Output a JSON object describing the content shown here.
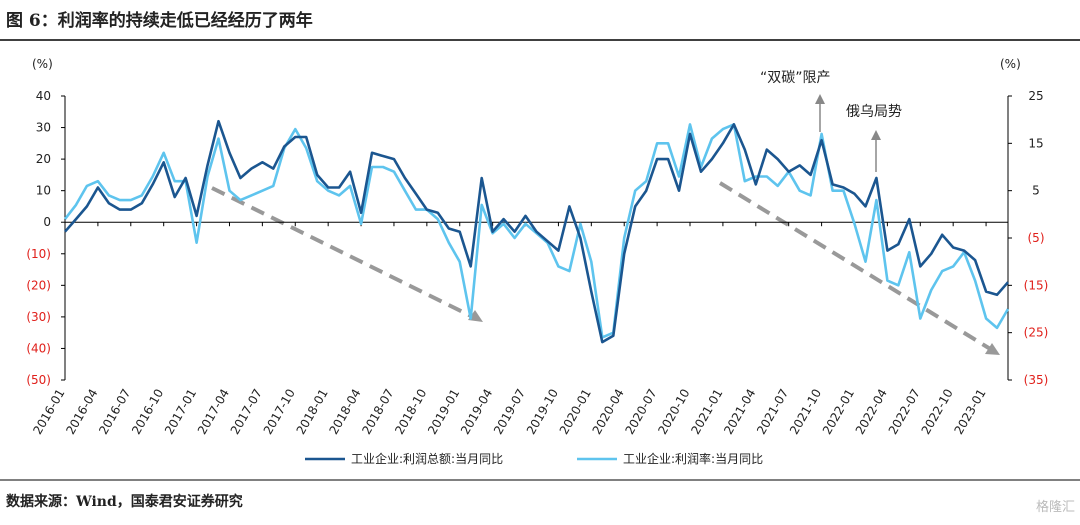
{
  "chart_data": {
    "type": "line",
    "title": "图 6：利润率的持续走低已经经历了两年",
    "source": "数据来源：Wind，国泰君安证券研究",
    "watermark": "格隆汇",
    "y_unit": "(%)",
    "y2_unit": "(%)",
    "annotations": [
      "“双碳”限产",
      "俄乌局势"
    ],
    "x": [
      "2016-01",
      "2016-02",
      "2016-03",
      "2016-04",
      "2016-05",
      "2016-06",
      "2016-07",
      "2016-08",
      "2016-09",
      "2016-10",
      "2016-11",
      "2016-12",
      "2017-01",
      "2017-02",
      "2017-03",
      "2017-04",
      "2017-05",
      "2017-06",
      "2017-07",
      "2017-08",
      "2017-09",
      "2017-10",
      "2017-11",
      "2017-12",
      "2018-01",
      "2018-02",
      "2018-03",
      "2018-04",
      "2018-05",
      "2018-06",
      "2018-07",
      "2018-08",
      "2018-09",
      "2018-10",
      "2018-11",
      "2018-12",
      "2019-01",
      "2019-02",
      "2019-03",
      "2019-04",
      "2019-05",
      "2019-06",
      "2019-07",
      "2019-08",
      "2019-09",
      "2019-10",
      "2019-11",
      "2019-12",
      "2020-01",
      "2020-02",
      "2020-03",
      "2020-04",
      "2020-05",
      "2020-06",
      "2020-07",
      "2020-08",
      "2020-09",
      "2020-10",
      "2020-11",
      "2020-12",
      "2021-01",
      "2021-02",
      "2021-03",
      "2021-04",
      "2021-05",
      "2021-06",
      "2021-07",
      "2021-08",
      "2021-09",
      "2021-10",
      "2021-11",
      "2021-12",
      "2022-01",
      "2022-02",
      "2022-03",
      "2022-04",
      "2022-05",
      "2022-06",
      "2022-07",
      "2022-08",
      "2022-09",
      "2022-10",
      "2022-11",
      "2022-12",
      "2023-01",
      "2023-02",
      "2023-03"
    ],
    "xticks": [
      "2016-01",
      "2016-04",
      "2016-07",
      "2016-10",
      "2017-01",
      "2017-04",
      "2017-07",
      "2017-10",
      "2018-01",
      "2018-04",
      "2018-07",
      "2018-10",
      "2019-01",
      "2019-04",
      "2019-07",
      "2019-10",
      "2020-01",
      "2020-04",
      "2020-07",
      "2020-10",
      "2021-01",
      "2021-04",
      "2021-07",
      "2021-10",
      "2022-01",
      "2022-04",
      "2022-07",
      "2022-10",
      "2023-01"
    ],
    "ylim": [
      -50,
      40
    ],
    "yticks": [
      {
        "value": -50,
        "label": "(50)"
      },
      {
        "value": -40,
        "label": "(40)"
      },
      {
        "value": -30,
        "label": "(30)"
      },
      {
        "value": -20,
        "label": "(20)"
      },
      {
        "value": -10,
        "label": "(10)"
      },
      0,
      10,
      20,
      30,
      40
    ],
    "y2lim": [
      -35,
      25
    ],
    "y2ticks": [
      {
        "value": -35,
        "label": "(35)"
      },
      {
        "value": -25,
        "label": "(25)"
      },
      {
        "value": -15,
        "label": "(15)"
      },
      {
        "value": -5,
        "label": "(5)"
      },
      5,
      15,
      25
    ],
    "legend": "bottom",
    "series": [
      {
        "name": "工业企业:利润总额:当月同比",
        "color": "#1b5690",
        "values": [
          -3,
          1,
          5,
          11,
          6,
          4,
          4,
          6,
          12,
          19,
          8,
          14,
          2,
          18,
          32,
          22,
          14,
          17,
          19,
          17,
          24,
          27,
          27,
          15,
          11,
          11,
          16,
          3,
          22,
          21,
          20,
          14,
          9,
          4,
          3,
          -2,
          -3,
          -14,
          14,
          -3,
          1,
          -3,
          2,
          -3,
          -6,
          -9,
          5,
          -5,
          -22,
          -38,
          -36,
          -10,
          5,
          10,
          20,
          20,
          10,
          28,
          16,
          20,
          25,
          31,
          23,
          12,
          23,
          20,
          16,
          18,
          15,
          26,
          12,
          11,
          9,
          5,
          14,
          -9,
          -7,
          1,
          -14,
          -10,
          -4,
          -8,
          -9,
          -12,
          -22,
          -23,
          -19
        ]
      },
      {
        "name": "工业企业:利润率:当月同比",
        "color": "#5ec4ee",
        "axis": "y2",
        "values": [
          -1,
          2,
          6,
          7,
          4,
          3,
          3,
          4,
          8,
          13,
          7,
          7,
          -6,
          8,
          16,
          5,
          3,
          4,
          5,
          6,
          14,
          18,
          14,
          7,
          5,
          4,
          6,
          -2,
          10,
          10,
          9,
          5,
          1,
          1,
          -1,
          -6,
          -10,
          -22,
          2,
          -4,
          -2,
          -5,
          -2,
          -4,
          -6,
          -11,
          -12,
          -2,
          -10,
          -26,
          -25,
          -5,
          5,
          7,
          15,
          15,
          8,
          19,
          10,
          16,
          18,
          19,
          7,
          8,
          8,
          6,
          9,
          5,
          4,
          17,
          5,
          5,
          -2,
          -10,
          3,
          -14,
          -15,
          -8,
          -22,
          -16,
          -12,
          -11,
          -8,
          -14,
          -22,
          -24,
          -20
        ]
      }
    ]
  }
}
